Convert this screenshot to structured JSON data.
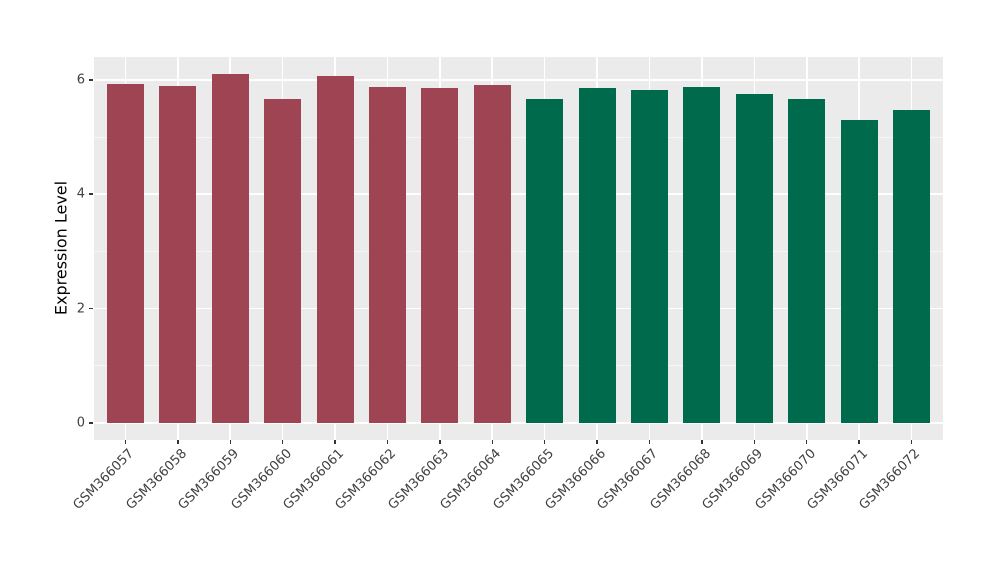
{
  "figure": {
    "background": "#FFFFFF",
    "panel_background": "#EBEBEB",
    "gridline_color": "#FFFFFF",
    "axis_text_color": "#404040",
    "axis_title_color": "#000000",
    "group_colors": {
      "left_group": "#9E4452",
      "right_group": "#006A4C"
    }
  },
  "chart_data": {
    "type": "bar",
    "title": "",
    "xlabel": "",
    "ylabel": "Expression Level",
    "categories": [
      "GSM366057",
      "GSM366058",
      "GSM366059",
      "GSM366060",
      "GSM366061",
      "GSM366062",
      "GSM366063",
      "GSM366064",
      "GSM366065",
      "GSM366066",
      "GSM366067",
      "GSM366068",
      "GSM366069",
      "GSM366070",
      "GSM366071",
      "GSM366072"
    ],
    "values": [
      5.92,
      5.89,
      6.1,
      5.67,
      6.06,
      5.88,
      5.85,
      5.91,
      5.67,
      5.85,
      5.82,
      5.87,
      5.75,
      5.66,
      5.29,
      5.48
    ],
    "bar_colors": [
      "#9E4452",
      "#9E4452",
      "#9E4452",
      "#9E4452",
      "#9E4452",
      "#9E4452",
      "#9E4452",
      "#9E4452",
      "#006A4C",
      "#006A4C",
      "#006A4C",
      "#006A4C",
      "#006A4C",
      "#006A4C",
      "#006A4C",
      "#006A4C"
    ],
    "yticks": [
      0,
      2,
      4,
      6
    ],
    "minor_yticks": [
      1,
      3,
      5
    ],
    "ylim": [
      -0.3,
      6.4
    ],
    "bar_width_fraction": 0.7,
    "x_label_rotation_deg": 45,
    "grid": true,
    "legend": "none"
  }
}
